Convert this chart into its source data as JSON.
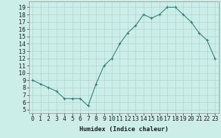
{
  "x": [
    0,
    1,
    2,
    3,
    4,
    5,
    6,
    7,
    8,
    9,
    10,
    11,
    12,
    13,
    14,
    15,
    16,
    17,
    18,
    19,
    20,
    21,
    22,
    23
  ],
  "y": [
    9,
    8.5,
    8,
    7.5,
    6.5,
    6.5,
    6.5,
    5.5,
    8.5,
    11,
    12,
    14,
    15.5,
    16.5,
    18,
    17.5,
    18,
    19,
    19,
    18,
    17,
    15.5,
    14.5,
    12
  ],
  "line_color": "#2d7d74",
  "marker": "+",
  "marker_size": 3.5,
  "bg_color": "#cceee8",
  "grid_color": "#aacccc",
  "xlabel": "Humidex (Indice chaleur)",
  "xlabel_fontsize": 6.5,
  "ylabel_ticks": [
    5,
    6,
    7,
    8,
    9,
    10,
    11,
    12,
    13,
    14,
    15,
    16,
    17,
    18,
    19
  ],
  "xlim": [
    -0.5,
    23.5
  ],
  "ylim": [
    4.5,
    19.8
  ],
  "xtick_labels": [
    "0",
    "1",
    "2",
    "3",
    "4",
    "5",
    "6",
    "7",
    "8",
    "9",
    "10",
    "11",
    "12",
    "13",
    "14",
    "15",
    "16",
    "17",
    "18",
    "19",
    "20",
    "21",
    "22",
    "23"
  ],
  "tick_fontsize": 6
}
